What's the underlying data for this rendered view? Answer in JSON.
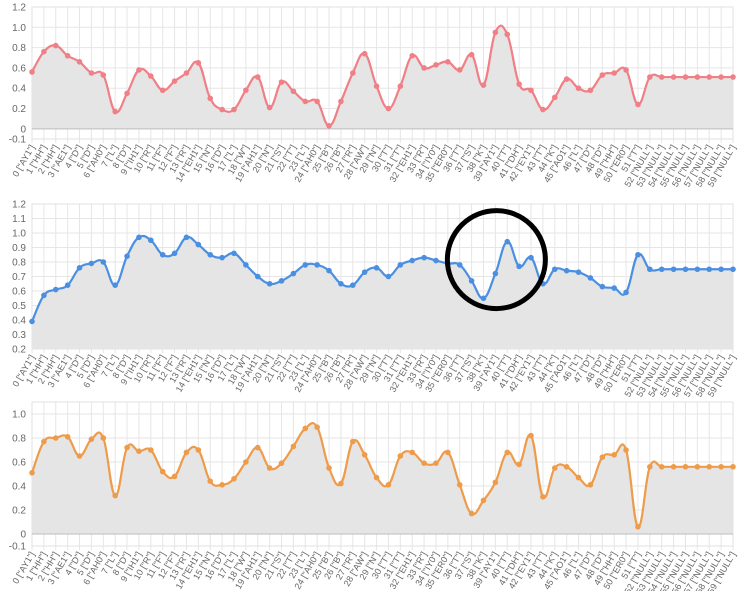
{
  "categories": [
    "0 [\"AY1\"]",
    "1 [\"HH\"]",
    "2 [\"HH\"]",
    "3 [\"AE1\"]",
    "4 [\"D\"]",
    "5 [\"D\"]",
    "6 [\"AH0\"]",
    "7 [\"L\"]",
    "8 [\"D\"]",
    "9 [\"IH1\"]",
    "10 [\"R\"]",
    "11 [\"F\"]",
    "12 [\"F\"]",
    "13 [\"R\"]",
    "14 [\"EH1\"]",
    "15 [\"N\"]",
    "16 [\"D\"]",
    "17 [\"L\"]",
    "18 [\"W\"]",
    "19 [\"AH1\"]",
    "20 [\"N\"]",
    "21 [\"S\"]",
    "22 [\"T\"]",
    "23 [\"L\"]",
    "24 [\"AH0\"]",
    "25 [\"B\"]",
    "26 [\"B\"]",
    "27 [\"R\"]",
    "28 [\"AW\"]",
    "29 [\"N\"]",
    "30 [\"T\"]",
    "31 [\"T\"]",
    "32 [\"EH1\"]",
    "33 [\"R\"]",
    "34 [\"IY0\"]",
    "35 [\"ER0\"]",
    "36 [\"T\"]",
    "37 [\"S\"]",
    "38 [\"K\"]",
    "39 [\"AY1\"]",
    "40 [\"T\"]",
    "41 [\"DH\"]",
    "42 [\"EY1\"]",
    "43 [\"T\"]",
    "44 [\"K\"]",
    "45 [\"AO1\"]",
    "46 [\"L\"]",
    "47 [\"D\"]",
    "48 [\"D\"]",
    "49 [\"HH\"]",
    "50 [\"ER0\"]",
    "51 [\"T\"]",
    "52 [\"NULL\"]",
    "53 [\"NULL\"]",
    "54 [\"NULL\"]",
    "55 [\"NULL\"]",
    "56 [\"NULL\"]",
    "57 [\"NULL\"]",
    "58 [\"NULL\"]",
    "59 [\"NULL\"]"
  ],
  "colors": {
    "red": "#f07f86",
    "blue": "#4a8fe2",
    "orange": "#ee9b4a",
    "fill": "#e5e5e5",
    "annotation": "#000000"
  },
  "annotation": {
    "shape": "circle",
    "chart_index": 1,
    "around_category": "39 [\"AY1\"]"
  },
  "chart_data": [
    {
      "type": "area",
      "title": "",
      "xlabel": "",
      "ylabel": "",
      "ylim": [
        -0.1,
        1.2
      ],
      "yticks": [
        -0.1,
        0,
        0.2,
        0.4,
        0.6,
        0.8,
        1.0,
        1.2
      ],
      "ytick_labels": [
        "-0.1",
        "0",
        "0.2",
        "0.4",
        "0.6",
        "0.8",
        "1.0",
        "1.2"
      ],
      "grid": true,
      "legend": "none",
      "series": [
        {
          "color_key": "red",
          "values": [
            0.56,
            0.76,
            0.82,
            0.72,
            0.66,
            0.55,
            0.53,
            0.17,
            0.35,
            0.58,
            0.52,
            0.38,
            0.47,
            0.55,
            0.65,
            0.3,
            0.19,
            0.19,
            0.38,
            0.51,
            0.21,
            0.46,
            0.37,
            0.27,
            0.27,
            0.03,
            0.27,
            0.55,
            0.74,
            0.42,
            0.2,
            0.42,
            0.72,
            0.6,
            0.63,
            0.66,
            0.58,
            0.73,
            0.43,
            0.95,
            0.93,
            0.44,
            0.38,
            0.19,
            0.31,
            0.49,
            0.4,
            0.38,
            0.53,
            0.55,
            0.58,
            0.24,
            0.51,
            0.51,
            0.51,
            0.51,
            0.51,
            0.51,
            0.51,
            0.51
          ]
        }
      ]
    },
    {
      "type": "area",
      "title": "",
      "xlabel": "",
      "ylabel": "",
      "ylim": [
        0.2,
        1.2
      ],
      "yticks": [
        0.2,
        0.3,
        0.4,
        0.5,
        0.6,
        0.7,
        0.8,
        0.9,
        1.0,
        1.1,
        1.2
      ],
      "ytick_labels": [
        "0.2",
        "0.3",
        "0.4",
        "0.5",
        "0.6",
        "0.7",
        "0.8",
        "0.9",
        "1.0",
        "1.1",
        "1.2"
      ],
      "grid": true,
      "legend": "none",
      "series": [
        {
          "color_key": "blue",
          "values": [
            0.39,
            0.57,
            0.61,
            0.64,
            0.76,
            0.79,
            0.8,
            0.64,
            0.84,
            0.97,
            0.95,
            0.85,
            0.86,
            0.97,
            0.92,
            0.85,
            0.83,
            0.86,
            0.78,
            0.7,
            0.65,
            0.67,
            0.72,
            0.78,
            0.78,
            0.74,
            0.65,
            0.64,
            0.73,
            0.76,
            0.7,
            0.78,
            0.81,
            0.83,
            0.81,
            0.79,
            0.78,
            0.67,
            0.55,
            0.72,
            0.94,
            0.77,
            0.83,
            0.65,
            0.75,
            0.74,
            0.73,
            0.69,
            0.63,
            0.62,
            0.59,
            0.85,
            0.75,
            0.75,
            0.75,
            0.75,
            0.75,
            0.75,
            0.75,
            0.75
          ]
        }
      ]
    },
    {
      "type": "area",
      "title": "",
      "xlabel": "",
      "ylabel": "",
      "ylim": [
        -0.1,
        1.1
      ],
      "yticks": [
        -0.1,
        0,
        0.2,
        0.4,
        0.6,
        0.8,
        1.0
      ],
      "ytick_labels": [
        "-0.1",
        "0",
        "0.2",
        "0.4",
        "0.6",
        "0.8",
        "1.0"
      ],
      "grid": true,
      "legend": "none",
      "series": [
        {
          "color_key": "orange",
          "values": [
            0.51,
            0.77,
            0.8,
            0.81,
            0.65,
            0.79,
            0.8,
            0.32,
            0.72,
            0.69,
            0.7,
            0.52,
            0.48,
            0.68,
            0.7,
            0.44,
            0.41,
            0.46,
            0.6,
            0.72,
            0.55,
            0.59,
            0.73,
            0.88,
            0.89,
            0.55,
            0.42,
            0.77,
            0.66,
            0.47,
            0.41,
            0.65,
            0.68,
            0.59,
            0.59,
            0.68,
            0.41,
            0.17,
            0.28,
            0.43,
            0.68,
            0.58,
            0.82,
            0.31,
            0.55,
            0.56,
            0.47,
            0.41,
            0.64,
            0.66,
            0.7,
            0.06,
            0.56,
            0.56,
            0.56,
            0.56,
            0.56,
            0.56,
            0.56,
            0.56
          ]
        }
      ]
    }
  ]
}
